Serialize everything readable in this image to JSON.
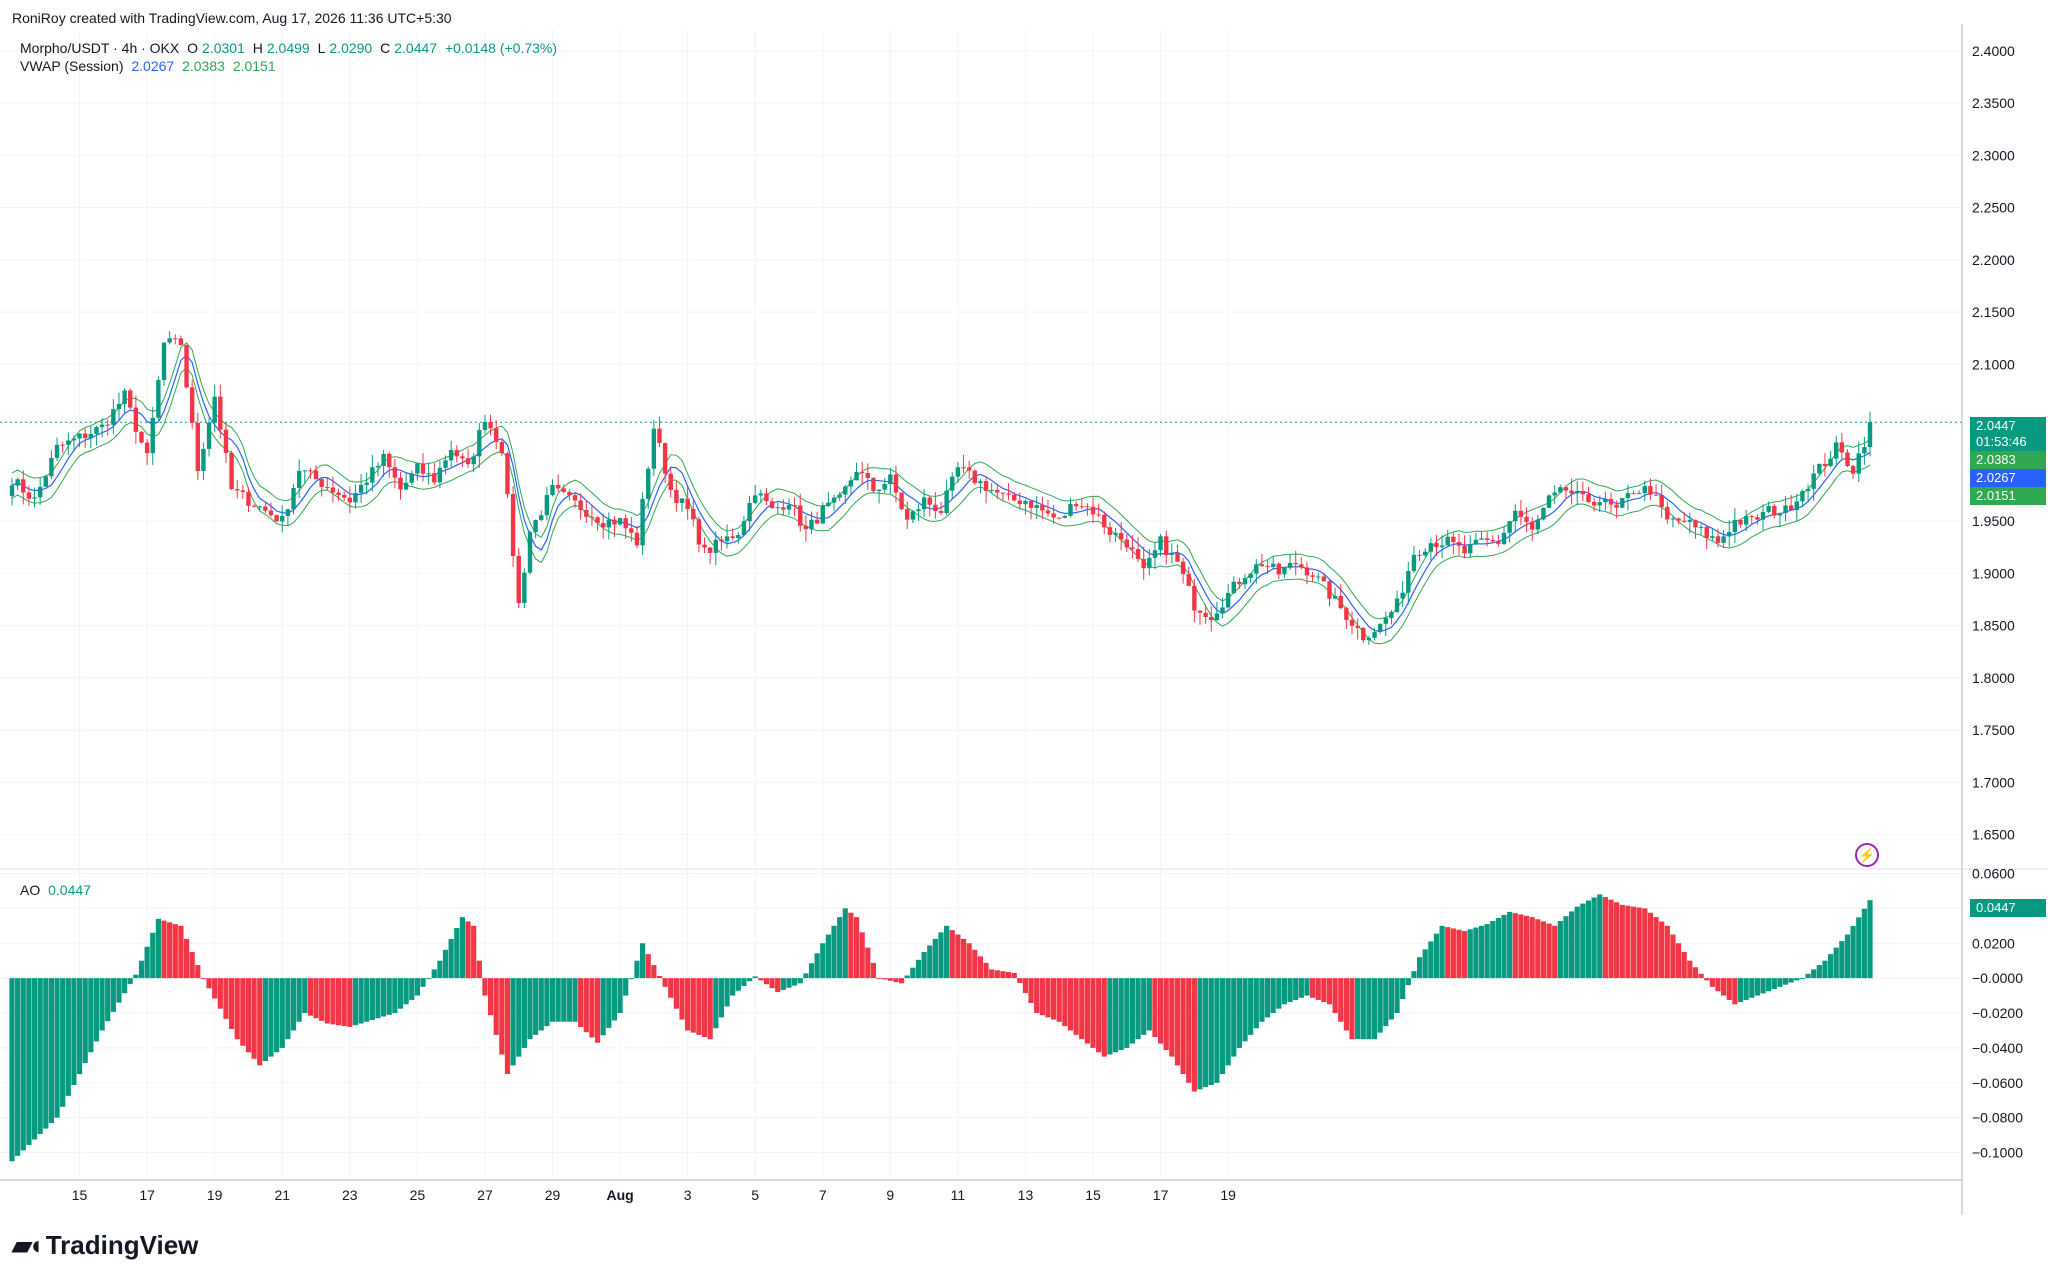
{
  "header": {
    "created_by": "RoniRoy created with TradingView.com, Aug 17, 2026 11:36 UTC+5:30"
  },
  "legend": {
    "symbol": "Morpho/USDT · 4h · OKX",
    "ohlc": {
      "o_key": "O",
      "o_val": "2.0301",
      "h_key": "H",
      "h_val": "2.0499",
      "l_key": "L",
      "l_val": "2.0290",
      "c_key": "C",
      "c_val": "2.0447",
      "change": "+0.0148 (+0.73%)"
    },
    "vwap_title": "VWAP (Session)",
    "vwap_values": [
      "2.0267",
      "2.0383",
      "2.0151"
    ],
    "ao_title": "AO",
    "ao_value": "0.0447"
  },
  "price_labels": {
    "last": "2.0447",
    "countdown": "01:53:46",
    "upper": "2.0383",
    "vwap": "2.0267",
    "lower": "2.0151",
    "ao": "0.0447"
  },
  "colors": {
    "up": "#089981",
    "down": "#f23645",
    "vwap": "#2962ff",
    "bands": "#2fa84f",
    "grid": "#f0f3fa",
    "text": "#131722",
    "axis_text": "#131722"
  },
  "icons": {
    "flash": "lightning-icon",
    "logo": "tradingview-logo"
  },
  "footer": {
    "brand": "TradingView"
  },
  "chart_data": [
    {
      "type": "candlestick",
      "title": "Morpho/USDT · 4h · OKX",
      "x_axis_labels": [
        "15",
        "17",
        "19",
        "21",
        "23",
        "25",
        "27",
        "29",
        "Aug",
        "3",
        "5",
        "7",
        "9",
        "11",
        "13",
        "15",
        "17",
        "19"
      ],
      "y_ticks": [
        "2.4000",
        "2.3500",
        "2.3000",
        "2.2500",
        "2.2000",
        "2.1500",
        "2.1000",
        "1.9500",
        "1.9000",
        "1.8500",
        "1.8000",
        "1.7500",
        "1.7000",
        "1.6500"
      ],
      "ylim": [
        1.62,
        2.42
      ],
      "start_date": "Jul 13",
      "bars_per_day": 6,
      "close_path": [
        [
          0,
          1.99
        ],
        [
          4,
          1.97
        ],
        [
          8,
          2.02
        ],
        [
          12,
          2.03
        ],
        [
          16,
          2.04
        ],
        [
          20,
          2.07
        ],
        [
          24,
          2.01
        ],
        [
          27,
          2.12
        ],
        [
          30,
          2.12
        ],
        [
          33,
          2.0
        ],
        [
          36,
          2.07
        ],
        [
          39,
          1.98
        ],
        [
          42,
          1.97
        ],
        [
          45,
          1.96
        ],
        [
          48,
          1.95
        ],
        [
          51,
          2.0
        ],
        [
          54,
          1.99
        ],
        [
          57,
          1.98
        ],
        [
          60,
          1.97
        ],
        [
          63,
          1.99
        ],
        [
          66,
          2.01
        ],
        [
          69,
          1.98
        ],
        [
          72,
          2.0
        ],
        [
          75,
          1.99
        ],
        [
          78,
          2.02
        ],
        [
          81,
          2.0
        ],
        [
          84,
          2.05
        ],
        [
          87,
          2.02
        ],
        [
          90,
          1.87
        ],
        [
          92,
          1.94
        ],
        [
          94,
          1.96
        ],
        [
          96,
          1.98
        ],
        [
          99,
          1.97
        ],
        [
          102,
          1.96
        ],
        [
          105,
          1.95
        ],
        [
          108,
          1.95
        ],
        [
          111,
          1.93
        ],
        [
          114,
          2.04
        ],
        [
          117,
          1.98
        ],
        [
          120,
          1.96
        ],
        [
          123,
          1.92
        ],
        [
          126,
          1.93
        ],
        [
          129,
          1.94
        ],
        [
          132,
          1.98
        ],
        [
          135,
          1.96
        ],
        [
          138,
          1.97
        ],
        [
          141,
          1.94
        ],
        [
          144,
          1.96
        ],
        [
          147,
          1.97
        ],
        [
          150,
          2.0
        ],
        [
          153,
          1.98
        ],
        [
          156,
          1.99
        ],
        [
          159,
          1.95
        ],
        [
          162,
          1.97
        ],
        [
          165,
          1.96
        ],
        [
          168,
          2.0
        ],
        [
          171,
          1.99
        ],
        [
          174,
          1.98
        ],
        [
          177,
          1.97
        ],
        [
          180,
          1.97
        ],
        [
          183,
          1.96
        ],
        [
          186,
          1.95
        ],
        [
          189,
          1.97
        ],
        [
          192,
          1.96
        ],
        [
          195,
          1.94
        ],
        [
          198,
          1.93
        ],
        [
          201,
          1.9
        ],
        [
          204,
          1.93
        ],
        [
          207,
          1.91
        ],
        [
          210,
          1.87
        ],
        [
          213,
          1.86
        ],
        [
          216,
          1.88
        ],
        [
          219,
          1.9
        ],
        [
          222,
          1.91
        ],
        [
          225,
          1.9
        ],
        [
          228,
          1.91
        ],
        [
          231,
          1.9
        ],
        [
          234,
          1.88
        ],
        [
          237,
          1.86
        ],
        [
          240,
          1.84
        ],
        [
          243,
          1.85
        ],
        [
          246,
          1.87
        ],
        [
          249,
          1.92
        ],
        [
          252,
          1.93
        ],
        [
          255,
          1.93
        ],
        [
          258,
          1.92
        ],
        [
          261,
          1.93
        ],
        [
          264,
          1.93
        ],
        [
          267,
          1.96
        ],
        [
          270,
          1.94
        ],
        [
          273,
          1.97
        ],
        [
          276,
          1.98
        ],
        [
          279,
          1.97
        ],
        [
          282,
          1.97
        ],
        [
          285,
          1.96
        ],
        [
          288,
          1.98
        ],
        [
          291,
          1.98
        ],
        [
          294,
          1.95
        ],
        [
          297,
          1.95
        ],
        [
          300,
          1.94
        ],
        [
          303,
          1.93
        ],
        [
          306,
          1.95
        ],
        [
          309,
          1.95
        ],
        [
          312,
          1.96
        ],
        [
          315,
          1.96
        ],
        [
          318,
          1.98
        ],
        [
          321,
          2.0
        ],
        [
          324,
          2.02
        ],
        [
          327,
          2.0
        ],
        [
          330,
          2.04
        ]
      ]
    },
    {
      "type": "bar",
      "title": "AO",
      "y_ticks": [
        "0.0600",
        "0.0400",
        "0.0200",
        "−0.0000",
        "−0.0200",
        "−0.0400",
        "−0.0600",
        "−0.0800",
        "−0.1000"
      ],
      "ylim": [
        -0.11,
        0.062
      ],
      "ao_path": [
        [
          0,
          -0.105
        ],
        [
          8,
          -0.08
        ],
        [
          16,
          -0.03
        ],
        [
          22,
          0.002
        ],
        [
          26,
          0.034
        ],
        [
          30,
          0.03
        ],
        [
          34,
          0.0
        ],
        [
          40,
          -0.035
        ],
        [
          44,
          -0.05
        ],
        [
          48,
          -0.04
        ],
        [
          52,
          -0.02
        ],
        [
          56,
          -0.026
        ],
        [
          60,
          -0.028
        ],
        [
          64,
          -0.024
        ],
        [
          68,
          -0.02
        ],
        [
          72,
          -0.01
        ],
        [
          76,
          0.01
        ],
        [
          80,
          0.035
        ],
        [
          82,
          0.03
        ],
        [
          84,
          -0.01
        ],
        [
          88,
          -0.055
        ],
        [
          92,
          -0.035
        ],
        [
          96,
          -0.025
        ],
        [
          100,
          -0.025
        ],
        [
          104,
          -0.037
        ],
        [
          108,
          -0.02
        ],
        [
          112,
          0.02
        ],
        [
          116,
          -0.005
        ],
        [
          120,
          -0.03
        ],
        [
          124,
          -0.035
        ],
        [
          128,
          -0.01
        ],
        [
          132,
          0.001
        ],
        [
          136,
          -0.008
        ],
        [
          140,
          -0.003
        ],
        [
          144,
          0.02
        ],
        [
          148,
          0.04
        ],
        [
          150,
          0.035
        ],
        [
          154,
          0.0
        ],
        [
          158,
          -0.003
        ],
        [
          162,
          0.015
        ],
        [
          166,
          0.03
        ],
        [
          170,
          0.02
        ],
        [
          174,
          0.005
        ],
        [
          178,
          0.003
        ],
        [
          182,
          -0.02
        ],
        [
          186,
          -0.025
        ],
        [
          190,
          -0.035
        ],
        [
          194,
          -0.045
        ],
        [
          198,
          -0.04
        ],
        [
          202,
          -0.03
        ],
        [
          206,
          -0.045
        ],
        [
          210,
          -0.065
        ],
        [
          214,
          -0.06
        ],
        [
          218,
          -0.04
        ],
        [
          222,
          -0.025
        ],
        [
          226,
          -0.015
        ],
        [
          230,
          -0.01
        ],
        [
          234,
          -0.015
        ],
        [
          238,
          -0.035
        ],
        [
          242,
          -0.035
        ],
        [
          246,
          -0.02
        ],
        [
          250,
          0.012
        ],
        [
          254,
          0.03
        ],
        [
          258,
          0.027
        ],
        [
          262,
          0.031
        ],
        [
          266,
          0.038
        ],
        [
          270,
          0.035
        ],
        [
          274,
          0.03
        ],
        [
          278,
          0.041
        ],
        [
          282,
          0.048
        ],
        [
          286,
          0.042
        ],
        [
          290,
          0.04
        ],
        [
          294,
          0.03
        ],
        [
          298,
          0.01
        ],
        [
          302,
          -0.005
        ],
        [
          306,
          -0.015
        ],
        [
          310,
          -0.01
        ],
        [
          314,
          -0.005
        ],
        [
          318,
          0.0
        ],
        [
          322,
          0.01
        ],
        [
          326,
          0.025
        ],
        [
          330,
          0.0447
        ]
      ]
    }
  ]
}
